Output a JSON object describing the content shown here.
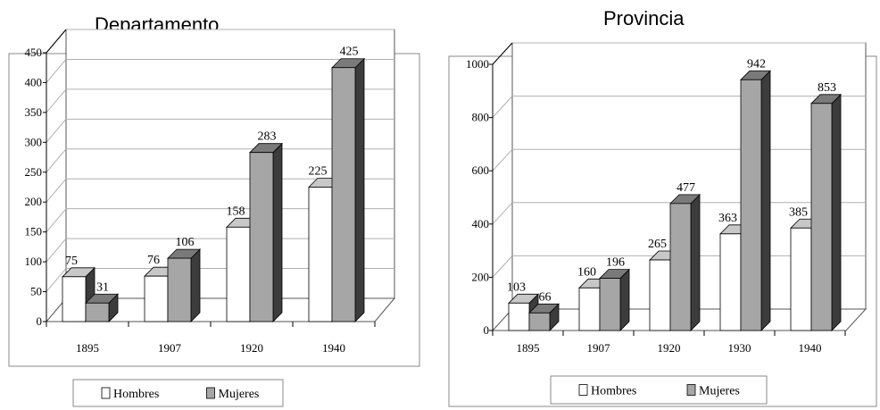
{
  "chart_data": [
    {
      "type": "bar",
      "title": "Departamento",
      "categories": [
        "1895",
        "1907",
        "1920",
        "1940"
      ],
      "series": [
        {
          "name": "Hombres",
          "values": [
            75,
            76,
            158,
            225
          ]
        },
        {
          "name": "Mujeres",
          "values": [
            31,
            106,
            283,
            425
          ]
        }
      ],
      "ylim": [
        0,
        450
      ],
      "yticks": [
        "0",
        "50",
        "100",
        "150",
        "200",
        "250",
        "300",
        "350",
        "400",
        "450"
      ],
      "legend_position": "bottom",
      "grid": true,
      "three_d": true
    },
    {
      "type": "bar",
      "title": "Provincia",
      "categories": [
        "1895",
        "1907",
        "1920",
        "1930",
        "1940"
      ],
      "series": [
        {
          "name": "Hombres",
          "values": [
            103,
            160,
            265,
            363,
            385
          ]
        },
        {
          "name": "Mujeres",
          "values": [
            66,
            196,
            477,
            942,
            853
          ]
        }
      ],
      "ylim": [
        0,
        1000
      ],
      "yticks": [
        "0",
        "200",
        "400",
        "600",
        "800",
        "1000"
      ],
      "legend_position": "bottom",
      "grid": true,
      "three_d": true
    }
  ],
  "colors": {
    "hombres_front": "#ffffff",
    "mujeres_front": "#a6a6a6",
    "mujeres_top": "#7a7a7a",
    "hombres_top": "#c8c8c8",
    "side": "#3c3c3c",
    "grid": "#b0b0b0"
  }
}
